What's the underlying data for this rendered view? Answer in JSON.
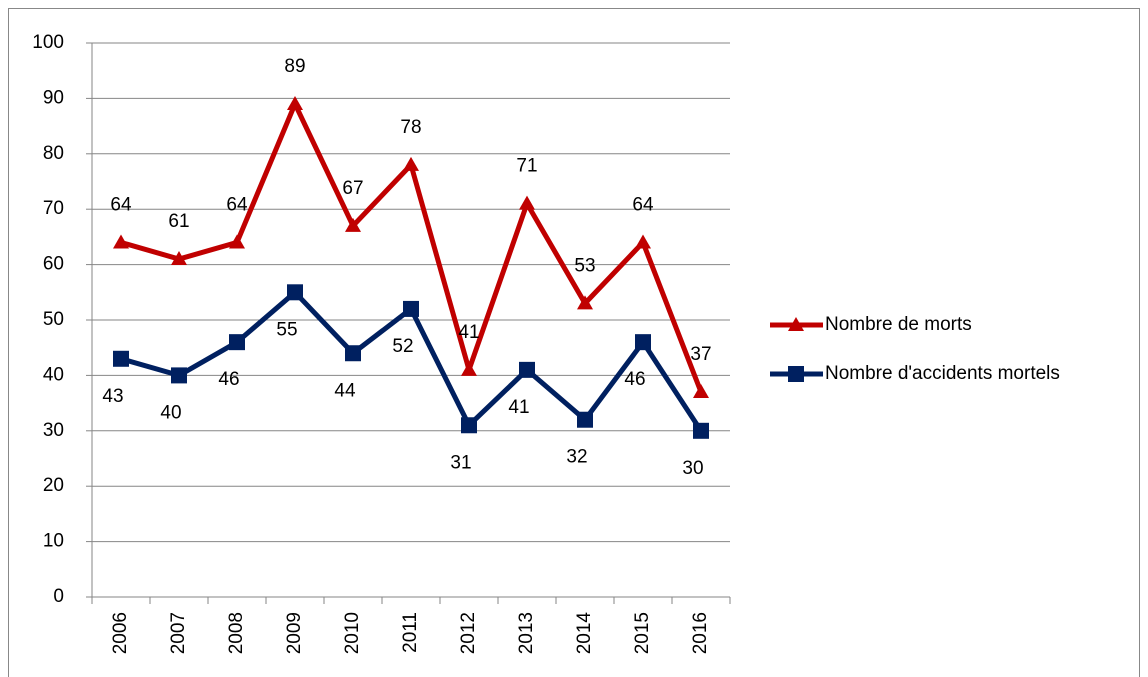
{
  "chart_data": {
    "type": "line",
    "categories": [
      "2006",
      "2007",
      "2008",
      "2009",
      "2010",
      "2011",
      "2012",
      "2013",
      "2014",
      "2015",
      "2016"
    ],
    "series": [
      {
        "name": "Nombre de morts",
        "color": "#c00000",
        "marker": "triangle",
        "values": [
          64,
          61,
          64,
          89,
          67,
          78,
          41,
          71,
          53,
          64,
          37
        ]
      },
      {
        "name": "Nombre d'accidents mortels",
        "color": "#002060",
        "marker": "square",
        "values": [
          43,
          40,
          46,
          55,
          44,
          52,
          31,
          41,
          32,
          46,
          30
        ]
      }
    ],
    "ylim": [
      0,
      100
    ],
    "yticks": [
      0,
      10,
      20,
      30,
      40,
      50,
      60,
      70,
      80,
      90,
      100
    ],
    "grid": true,
    "legend": "right"
  }
}
